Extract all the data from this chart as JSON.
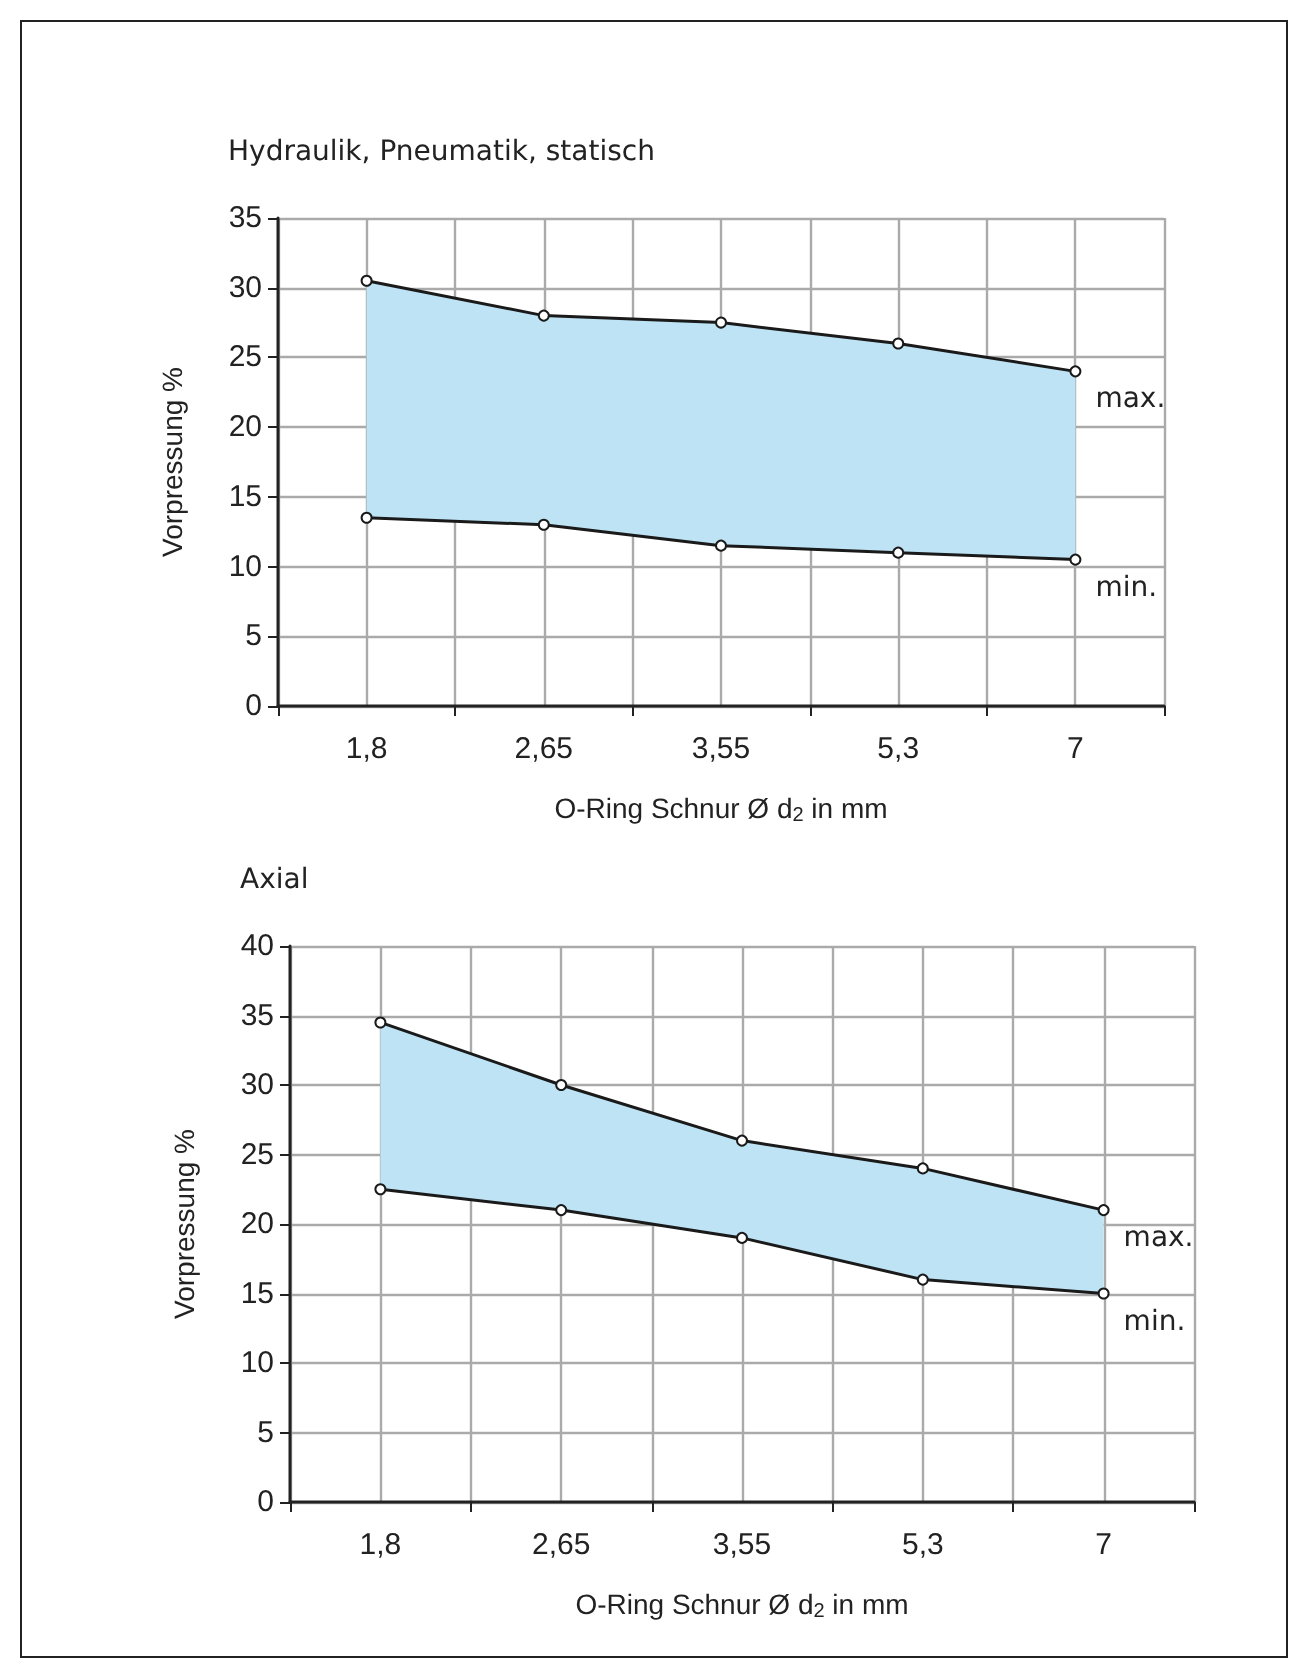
{
  "chart_data": [
    {
      "type": "line",
      "title": "Hydraulik, Pneumatik, statisch",
      "xlabel": "O-Ring Schnur Ø d$_{2}$ in mm",
      "ylabel": "Vorpressung %",
      "categories": [
        "1,8",
        "2,65",
        "3,55",
        "5,3",
        "7"
      ],
      "series": [
        {
          "name": "max.",
          "color": "#1a1a1a",
          "values": [
            30.5,
            28,
            27.5,
            26,
            24
          ],
          "lower": [
            13.5,
            13,
            11.5,
            11,
            10.5
          ],
          "upper": [
            30.5,
            28,
            27.5,
            26,
            24
          ]
        },
        {
          "name": "min.",
          "color": "#1a1a1a",
          "values": [
            13.5,
            13,
            11.5,
            11,
            10.5
          ]
        }
      ],
      "ylim": [
        0,
        35
      ],
      "yticks": [
        0,
        5,
        10,
        15,
        20,
        25,
        30,
        35
      ],
      "grid": true,
      "marker": "circle",
      "line_style": "solid"
    },
    {
      "type": "line",
      "title": "Axial",
      "xlabel": "O-Ring Schnur Ø d$_{2}$ in mm",
      "ylabel": "Vorpressung %",
      "categories": [
        "1,8",
        "2,65",
        "3,55",
        "5,3",
        "7"
      ],
      "series": [
        {
          "name": "max.",
          "color": "#1a1a1a",
          "values": [
            34.5,
            30,
            26,
            24,
            21
          ],
          "lower": [
            22.5,
            21,
            19,
            16,
            15
          ],
          "upper": [
            34.5,
            30,
            26,
            24,
            21
          ]
        },
        {
          "name": "min.",
          "color": "#1a1a1a",
          "values": [
            22.5,
            21,
            19,
            16,
            15
          ]
        }
      ],
      "ylim": [
        0,
        40
      ],
      "yticks": [
        0,
        5,
        10,
        15,
        20,
        25,
        30,
        35,
        40
      ],
      "grid": true,
      "marker": "circle",
      "line_style": "solid"
    }
  ]
}
